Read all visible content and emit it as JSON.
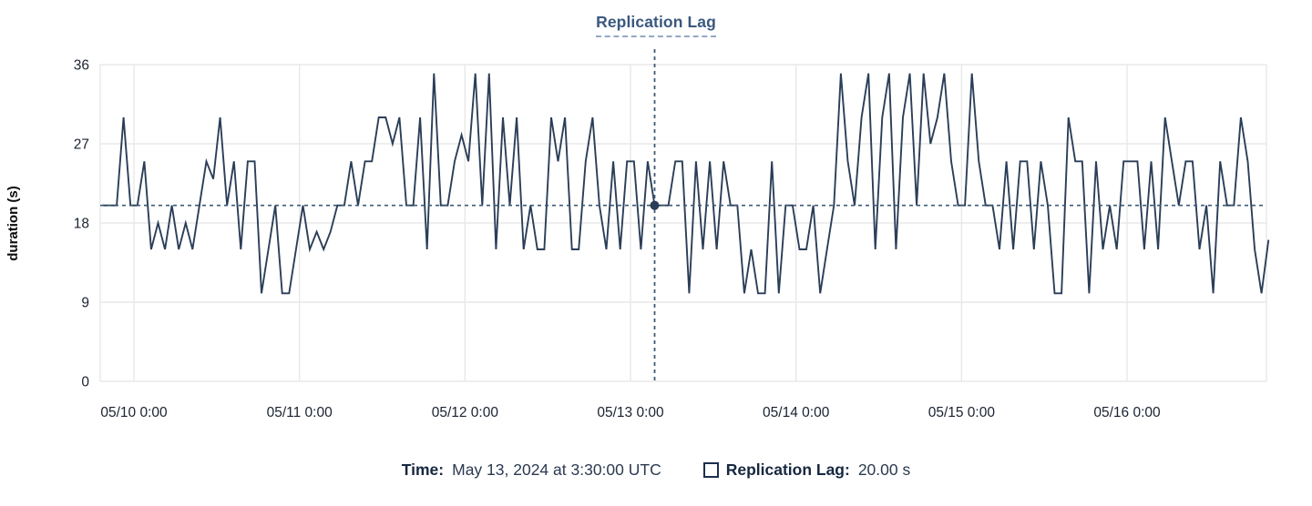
{
  "title": "Replication Lag",
  "axes": {
    "y_label": "duration (s)",
    "y_ticks": [
      0,
      9,
      18,
      27,
      36
    ],
    "x_ticks": [
      "05/10 0:00",
      "05/11 0:00",
      "05/12 0:00",
      "05/13 0:00",
      "05/14 0:00",
      "05/15 0:00",
      "05/16 0:00"
    ]
  },
  "tooltip": {
    "time_label": "Time:",
    "time_value": "May 13, 2024 at 3:30:00 UTC",
    "series_label": "Replication Lag:",
    "series_value": "20.00 s"
  },
  "colors": {
    "line": "#2b3e58",
    "crosshair": "#3e5a76",
    "dot": "#2b3e58",
    "grid": "#e8e8e8",
    "tick_text": "#1a2230",
    "title_text": "#3a587f"
  },
  "chart_data": {
    "type": "line",
    "title": "Replication Lag",
    "ylabel": "duration (s)",
    "ylim": [
      0,
      36
    ],
    "y_ticks": [
      0,
      9,
      18,
      27,
      36
    ],
    "x_tick_labels": [
      "05/10 0:00",
      "05/11 0:00",
      "05/12 0:00",
      "05/13 0:00",
      "05/14 0:00",
      "05/15 0:00",
      "05/16 0:00"
    ],
    "x_start": "05/09 19:30",
    "x_interval_hours": 1,
    "grid": true,
    "legend_position": "bottom",
    "series": [
      {
        "name": "Replication Lag",
        "unit": "s",
        "values": [
          20,
          20,
          20,
          30,
          20,
          20,
          25,
          15,
          18,
          15,
          20,
          15,
          18,
          15,
          20,
          25,
          23,
          30,
          20,
          25,
          15,
          25,
          25,
          10,
          15,
          20,
          10,
          10,
          15,
          20,
          15,
          17,
          15,
          17,
          20,
          20,
          25,
          20,
          25,
          25,
          30,
          30,
          27,
          30,
          20,
          20,
          30,
          15,
          35,
          20,
          20,
          25,
          28,
          25,
          35,
          20,
          35,
          15,
          30,
          20,
          30,
          15,
          20,
          15,
          15,
          30,
          25,
          30,
          15,
          15,
          25,
          30,
          20,
          15,
          25,
          15,
          25,
          25,
          15,
          25,
          20,
          20,
          20,
          25,
          25,
          10,
          25,
          15,
          25,
          15,
          25,
          20,
          20,
          10,
          15,
          10,
          10,
          25,
          10,
          20,
          20,
          15,
          15,
          20,
          10,
          15,
          20,
          35,
          25,
          20,
          30,
          35,
          15,
          30,
          35,
          15,
          30,
          35,
          20,
          35,
          27,
          30,
          35,
          25,
          20,
          20,
          35,
          25,
          20,
          20,
          15,
          25,
          15,
          25,
          25,
          15,
          25,
          20,
          10,
          10,
          30,
          25,
          25,
          10,
          25,
          15,
          20,
          15,
          25,
          25,
          25,
          15,
          25,
          15,
          30,
          25,
          20,
          25,
          25,
          15,
          20,
          10,
          25,
          20,
          20,
          30,
          25,
          15,
          10,
          16
        ]
      }
    ],
    "crosshair": {
      "index": 80,
      "time": "May 13, 2024 at 3:30:00 UTC",
      "value": 20.0,
      "value_label": "20.00 s"
    }
  }
}
